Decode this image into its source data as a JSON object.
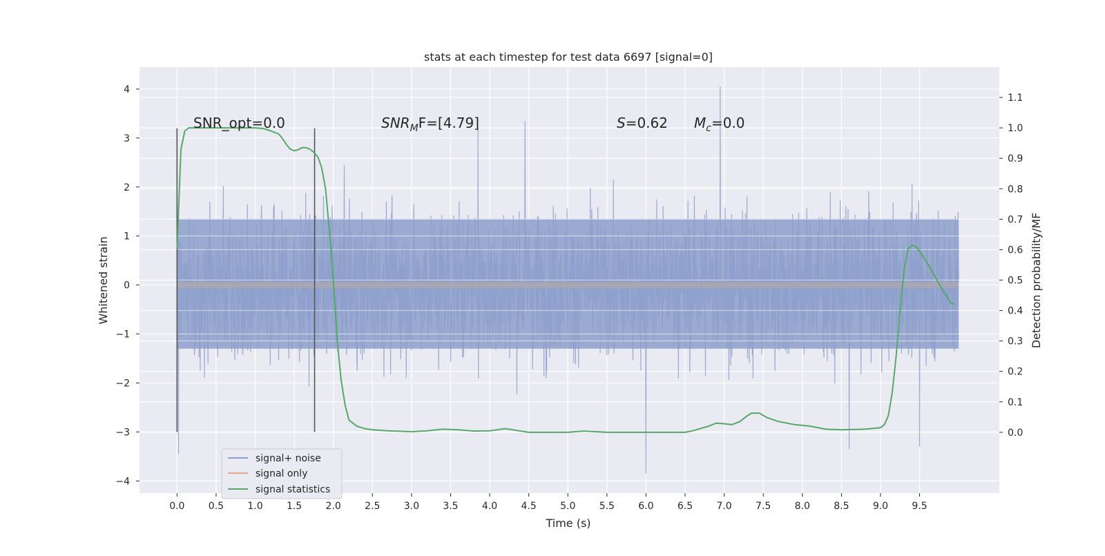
{
  "chart_data": {
    "type": "line",
    "title": "stats at each timestep for test data 6697 [signal=0]",
    "xlabel": "Time (s)",
    "ylabel": "Whitened strain",
    "ylabel_right": "Detection probability/MF",
    "xlim": [
      -0.48,
      10.52
    ],
    "ylim": [
      -4.25,
      4.45
    ],
    "ylim_right": [
      -0.2,
      1.2
    ],
    "x_ticks": [
      "0.0",
      "0.5",
      "1.0",
      "1.5",
      "2.0",
      "2.5",
      "3.0",
      "3.5",
      "4.0",
      "4.5",
      "5.0",
      "5.5",
      "6.0",
      "6.5",
      "7.0",
      "7.5",
      "8.0",
      "8.5",
      "9.0",
      "9.5"
    ],
    "y_ticks": [
      "4",
      "3",
      "2",
      "1",
      "0",
      "−1",
      "−2",
      "−3",
      "−4"
    ],
    "y_ticks_right": [
      "1.1",
      "1.0",
      "0.9",
      "0.8",
      "0.7",
      "0.6",
      "0.5",
      "0.4",
      "0.3",
      "0.2",
      "0.1",
      "0.0"
    ],
    "grid": true,
    "legend_position": "lower-left",
    "annotations": {
      "snr_opt": "SNR_opt=0.0",
      "snr_mf_base": "SNR",
      "snr_mf_sub": "M",
      "snr_mf_rest": "F=[4.79]",
      "s_label": "S",
      "s_value": "=0.62",
      "mc_base": "M",
      "mc_sub": "c",
      "mc_value": "=0.0"
    },
    "window_markers": {
      "x": [
        0.0,
        1.76
      ],
      "y_range": [
        -3.0,
        3.2
      ]
    },
    "series": [
      {
        "name": "signal+ noise",
        "axis": "left",
        "color": "#8c9fca",
        "style": "dense noise trace",
        "x_range": [
          0.0,
          10.0
        ],
        "typical_amplitude": [
          -1.3,
          1.35
        ],
        "peaks": [
          [
            0.0,
            2.4
          ],
          [
            0.02,
            -3.45
          ],
          [
            6.95,
            4.05
          ],
          [
            6.0,
            -3.85
          ],
          [
            4.45,
            3.35
          ],
          [
            9.5,
            -3.3
          ],
          [
            8.6,
            -3.35
          ],
          [
            3.85,
            3.2
          ]
        ]
      },
      {
        "name": "signal only",
        "axis": "left",
        "color": "#e8a58a",
        "x": [
          0.0,
          10.0
        ],
        "y": [
          0.0,
          0.0
        ]
      },
      {
        "name": "signal statistics",
        "axis": "right",
        "color": "#55a868",
        "x": [
          0.0,
          0.05,
          0.1,
          0.15,
          0.25,
          0.4,
          0.6,
          0.8,
          1.0,
          1.1,
          1.2,
          1.3,
          1.35,
          1.4,
          1.45,
          1.5,
          1.55,
          1.6,
          1.65,
          1.7,
          1.75,
          1.8,
          1.85,
          1.9,
          1.95,
          2.0,
          2.05,
          2.1,
          2.15,
          2.2,
          2.25,
          2.3,
          2.4,
          2.5,
          2.7,
          3.0,
          3.2,
          3.4,
          3.6,
          3.8,
          4.0,
          4.2,
          4.5,
          5.0,
          5.2,
          5.5,
          6.0,
          6.5,
          6.6,
          6.8,
          6.9,
          7.0,
          7.1,
          7.2,
          7.3,
          7.35,
          7.45,
          7.55,
          7.7,
          7.9,
          8.1,
          8.3,
          8.5,
          8.8,
          9.0,
          9.05,
          9.1,
          9.15,
          9.2,
          9.25,
          9.3,
          9.35,
          9.4,
          9.45,
          9.5,
          9.6,
          9.7,
          9.8,
          9.9,
          9.95
        ],
        "y": [
          0.6,
          0.93,
          0.99,
          1.0,
          1.0,
          1.0,
          1.0,
          1.0,
          1.0,
          0.998,
          0.99,
          0.98,
          0.965,
          0.945,
          0.93,
          0.925,
          0.928,
          0.935,
          0.935,
          0.93,
          0.92,
          0.905,
          0.87,
          0.8,
          0.66,
          0.5,
          0.3,
          0.17,
          0.09,
          0.04,
          0.03,
          0.02,
          0.012,
          0.008,
          0.005,
          0.002,
          0.005,
          0.01,
          0.008,
          0.004,
          0.005,
          0.012,
          0.0,
          0.0,
          0.004,
          0.0,
          0.0,
          0.0,
          0.005,
          0.02,
          0.03,
          0.028,
          0.025,
          0.035,
          0.055,
          0.063,
          0.063,
          0.048,
          0.035,
          0.025,
          0.02,
          0.01,
          0.008,
          0.01,
          0.015,
          0.025,
          0.055,
          0.13,
          0.25,
          0.4,
          0.53,
          0.6,
          0.615,
          0.61,
          0.595,
          0.555,
          0.51,
          0.465,
          0.425,
          0.42
        ]
      }
    ]
  }
}
